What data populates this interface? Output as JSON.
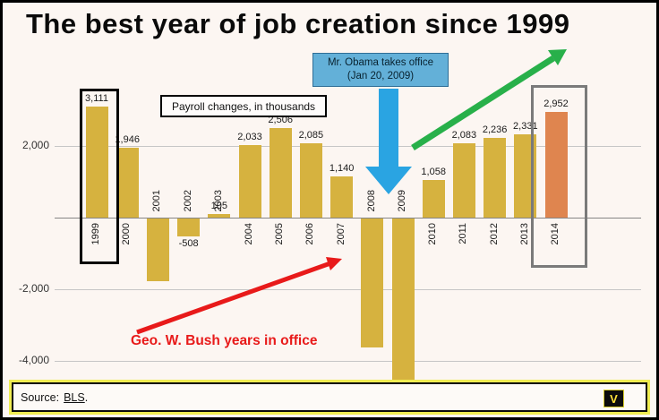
{
  "title": "The best year of job creation since 1999",
  "chart_data": {
    "type": "bar",
    "title": "The best year of job creation since 1999",
    "note_label": "Payroll changes, in thousands",
    "categories": [
      "1999",
      "2000",
      "2001",
      "2002",
      "2003",
      "2004",
      "2005",
      "2006",
      "2007",
      "2008",
      "2009",
      "2010",
      "2011",
      "2012",
      "2013",
      "2014"
    ],
    "values": [
      3111,
      1946,
      -1750,
      -508,
      105,
      2033,
      2506,
      2085,
      1140,
      -3600,
      -5100,
      1058,
      2083,
      2236,
      2331,
      2952
    ],
    "value_labels": [
      "3,111",
      "1,946",
      "",
      "-508",
      "105",
      "2,033",
      "2,506",
      "2,085",
      "1,140",
      "",
      "",
      "1,058",
      "2,083",
      "2,236",
      "2,331",
      "2,952"
    ],
    "yticks": [
      {
        "value": 2000,
        "label": "2,000"
      },
      {
        "value": -2000,
        "label": "-2,000"
      },
      {
        "value": -4000,
        "label": "-4,000"
      }
    ],
    "ylim": [
      -5100,
      3500
    ],
    "grid": true,
    "bar_color": "#d6b23f",
    "highlight_year": "2014",
    "highlight_bar_color": "#df854f",
    "legend": "none"
  },
  "annotations": {
    "obama_line1": "Mr. Obama takes office",
    "obama_line2": "(Jan 20, 2009)",
    "bush_label": "Geo. W. Bush years in office",
    "boxed_years": [
      "1999",
      "2014"
    ]
  },
  "footer": {
    "source_prefix": "Source:",
    "source_link": "BLS",
    "source_suffix": ".",
    "logo_letter": "V"
  },
  "colors": {
    "obama_arrow": "#2aa4e2",
    "obama_box_bg": "#63b0d8",
    "green_arrow": "#28b04a",
    "red_arrow": "#e81a1a",
    "bar": "#d6b23f",
    "highlight_bar": "#df854f"
  }
}
